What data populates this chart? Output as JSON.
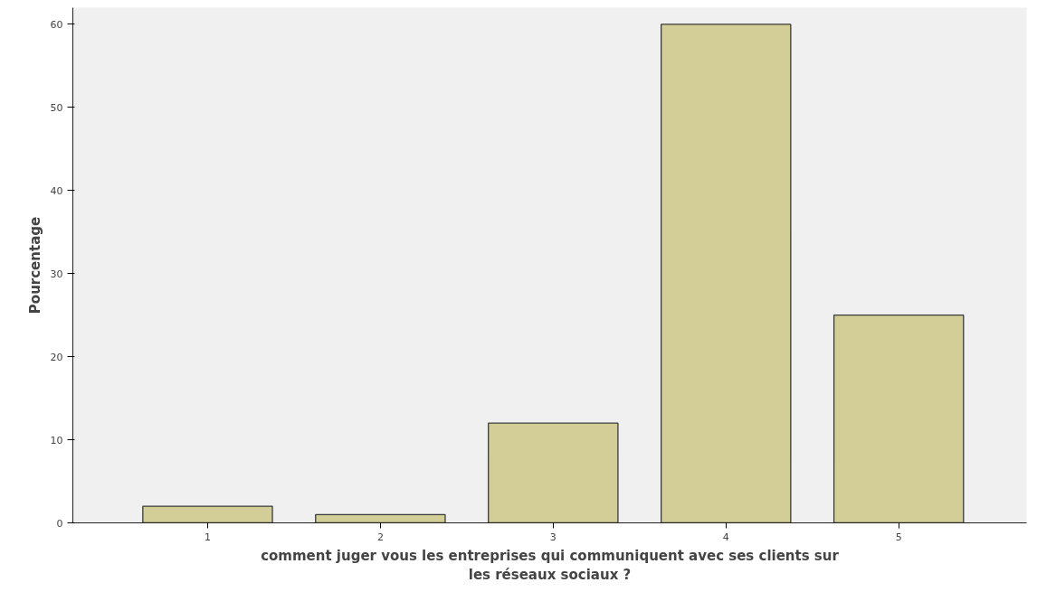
{
  "chart_data": {
    "type": "bar",
    "xlabel": "comment juger vous les entreprises qui communiquent avec ses clients sur les réseaux sociaux ?",
    "ylabel": "Pourcentage",
    "categories": [
      "1",
      "2",
      "3",
      "4",
      "5"
    ],
    "values": [
      2,
      1,
      12,
      60,
      25
    ],
    "color": "#d3ce97",
    "ylim": [
      0,
      62
    ],
    "yticks": [
      0,
      10,
      20,
      30,
      40,
      50,
      60
    ],
    "grid": false
  }
}
